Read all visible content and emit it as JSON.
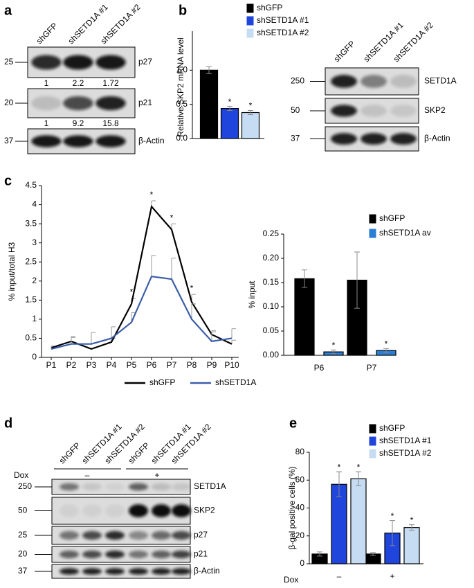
{
  "panel_a": {
    "letter": "a",
    "lanes": [
      "shGFP",
      "shSETD1A #1",
      "shSETD1A #2"
    ],
    "rows": [
      {
        "label": "p27",
        "marker": "25",
        "quant": [
          "1",
          "2.2",
          "1.72"
        ]
      },
      {
        "label": "p21",
        "marker": "20",
        "quant": [
          "1",
          "9.2",
          "15.8"
        ]
      },
      {
        "label": "β-Actin",
        "marker": "37"
      }
    ]
  },
  "panel_b": {
    "letter": "b",
    "lanes": [
      "shGFP",
      "shSETD1A #1",
      "shSETD1A #2"
    ],
    "rows": [
      {
        "label": "SETD1A",
        "marker": "250"
      },
      {
        "label": "SKP2",
        "marker": "50"
      },
      {
        "label": "β-Actin",
        "marker": "37"
      }
    ]
  },
  "panel_c": {
    "letter": "c"
  },
  "panel_d": {
    "letter": "d",
    "lanes": [
      "shGFP",
      "shSETD1A #1",
      "shSETD1A #2",
      "shGFP",
      "shSETD1A #1",
      "shSETD1A #2"
    ],
    "treatment": "Dox",
    "conditions": [
      "–",
      "+"
    ],
    "rows": [
      {
        "label": "SETD1A",
        "marker": "250"
      },
      {
        "label": "SKP2",
        "marker": "50"
      },
      {
        "label": "p27",
        "marker": "25"
      },
      {
        "label": "p21",
        "marker": "20"
      },
      {
        "label": "β-Actin",
        "marker": "37"
      }
    ]
  },
  "panel_e": {
    "letter": "e"
  },
  "chart_data": [
    {
      "type": "bar",
      "ylabel": "Relative SKP2 mRNA level",
      "ylim": [
        0,
        1.5
      ],
      "yticks": [
        {
          "value": 0,
          "label": "0.0"
        },
        {
          "value": 0.5,
          "label": "0.5"
        },
        {
          "value": 1,
          "label": "1.0"
        }
      ],
      "legend": "top-right",
      "series": [
        {
          "name": "shGFP",
          "color": "#000000",
          "values": [
            1.0
          ],
          "errors": [
            0.05
          ],
          "significance": [
            null
          ]
        },
        {
          "name": "shSETD1A #1",
          "color": "#1f45dc",
          "values": [
            0.44
          ],
          "errors": [
            0.03
          ],
          "significance": [
            "*"
          ]
        },
        {
          "name": "shSETD1A #2",
          "color": "#c6dcf3",
          "values": [
            0.38
          ],
          "errors": [
            0.03
          ],
          "significance": [
            "*"
          ]
        }
      ]
    },
    {
      "type": "line",
      "ylabel": "% input/total H3",
      "categories": [
        "P1",
        "P2",
        "P3",
        "P4",
        "P5",
        "P6",
        "P7",
        "P8",
        "P9",
        "P10"
      ],
      "ylim": [
        0,
        4.5
      ],
      "yticks": [
        0,
        0.5,
        1,
        1.5,
        2,
        2.5,
        3,
        3.5,
        4,
        4.5
      ],
      "legend": "bottom",
      "series": [
        {
          "name": "shGFP",
          "color": "#000000",
          "values": [
            0.25,
            0.42,
            0.22,
            0.4,
            1.4,
            3.95,
            3.35,
            1.45,
            0.6,
            0.35
          ],
          "errors": [
            0.05,
            0.1,
            0.02,
            0.1,
            0.15,
            0.15,
            0.15,
            0.2,
            0.1,
            0.1
          ],
          "significance": [
            null,
            null,
            null,
            null,
            "*",
            "*",
            "*",
            "*",
            null,
            null
          ]
        },
        {
          "name": "shSETD1A",
          "color": "#3a5da8",
          "values": [
            0.22,
            0.35,
            0.35,
            0.5,
            0.92,
            2.12,
            2.05,
            1.0,
            0.42,
            0.5
          ],
          "errors": [
            0.08,
            0.2,
            0.3,
            0.3,
            0.25,
            0.55,
            0.55,
            0.4,
            0.25,
            0.25
          ],
          "significance": [
            null,
            null,
            null,
            null,
            null,
            null,
            null,
            null,
            null,
            null
          ]
        }
      ]
    },
    {
      "type": "bar",
      "ylabel": "% input",
      "categories": [
        "P6",
        "P7"
      ],
      "ylim": [
        0,
        0.25
      ],
      "yticks": [
        {
          "value": 0,
          "label": "0.00"
        },
        {
          "value": 0.05,
          "label": "0.05"
        },
        {
          "value": 0.1,
          "label": "0.10"
        },
        {
          "value": 0.15,
          "label": "0.15"
        },
        {
          "value": 0.2,
          "label": "0.20"
        },
        {
          "value": 0.25,
          "label": "0.25"
        }
      ],
      "legend": "top-right",
      "series": [
        {
          "name": "shGFP",
          "color": "#000000",
          "values": [
            0.158,
            0.155
          ],
          "errors": [
            0.018,
            0.058
          ],
          "significance": [
            null,
            null
          ]
        },
        {
          "name": "shSETD1A av",
          "color": "#2a7fd4",
          "values": [
            0.007,
            0.01
          ],
          "errors": [
            0.004,
            0.004
          ],
          "significance": [
            "*",
            "*"
          ]
        }
      ]
    },
    {
      "type": "bar",
      "ylabel": "β-gal positive cells (%)",
      "xlabel": "Dox",
      "categories": [
        "–",
        "+"
      ],
      "ylim": [
        0,
        80
      ],
      "yticks": [
        0,
        20,
        40,
        60,
        80
      ],
      "legend": "top-right",
      "series": [
        {
          "name": "shGFP",
          "color": "#000000",
          "values": [
            7,
            7
          ],
          "errors": [
            1.5,
            1
          ],
          "significance": [
            null,
            null
          ]
        },
        {
          "name": "shSETD1A #1",
          "color": "#1f45dc",
          "values": [
            57,
            22
          ],
          "errors": [
            9,
            9
          ],
          "significance": [
            "*",
            "*"
          ]
        },
        {
          "name": "shSETD1A #2",
          "color": "#c6dcf3",
          "values": [
            61,
            26
          ],
          "errors": [
            5,
            2
          ],
          "significance": [
            "*",
            "*"
          ]
        }
      ]
    }
  ]
}
